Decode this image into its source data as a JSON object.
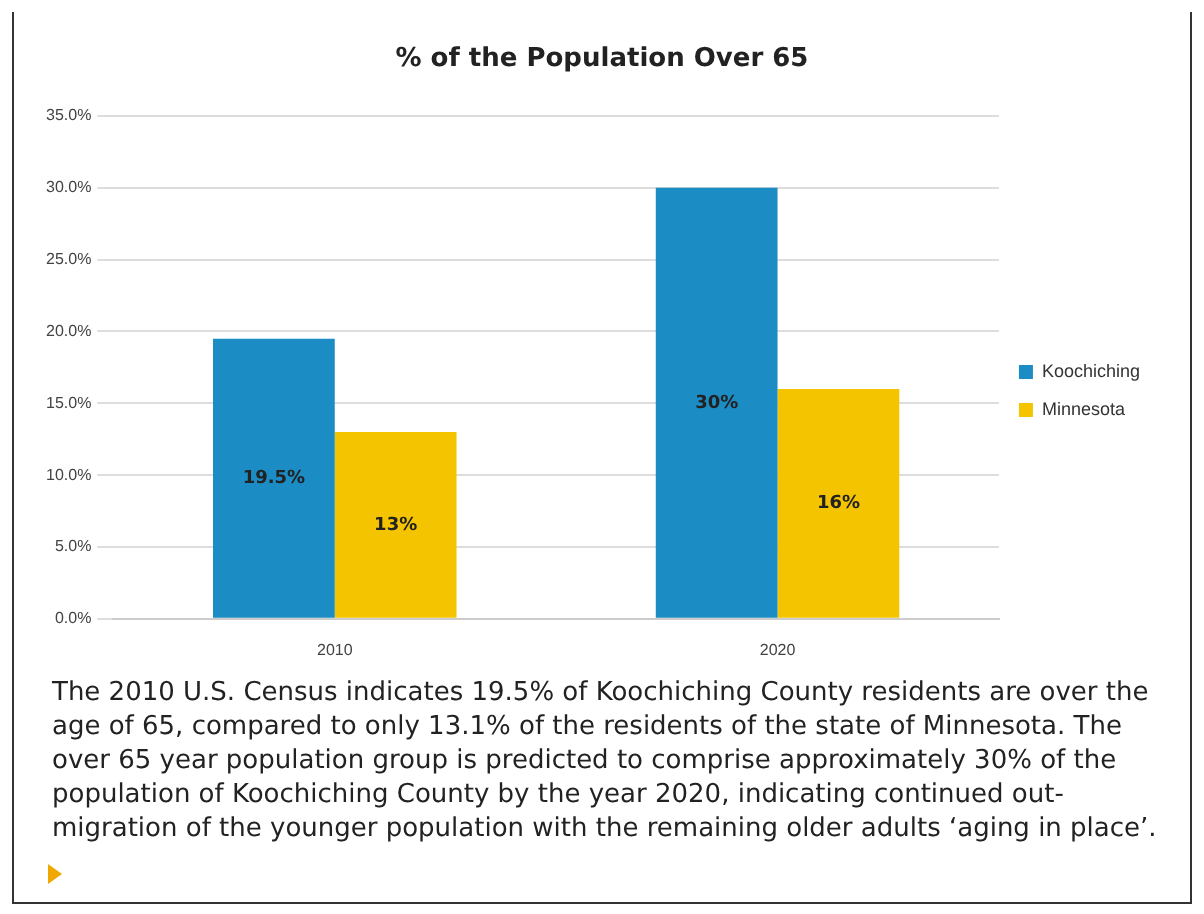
{
  "chart_data": {
    "type": "bar",
    "title": "% of the Population Over 65",
    "categories": [
      "2010",
      "2020"
    ],
    "series": [
      {
        "name": "Koochiching",
        "color": "#1b8cc4",
        "values": [
          19.5,
          30
        ],
        "value_labels": [
          "19.5%",
          "30%"
        ]
      },
      {
        "name": "Minnesota",
        "color": "#f5c400",
        "values": [
          13,
          16
        ],
        "value_labels": [
          "13%",
          "16%"
        ]
      }
    ],
    "ylim": [
      0,
      35
    ],
    "yticks": [
      {
        "value": 0,
        "label": "0.0%"
      },
      {
        "value": 5,
        "label": "5.0%"
      },
      {
        "value": 10,
        "label": "10.0%"
      },
      {
        "value": 15,
        "label": "15.0%"
      },
      {
        "value": 20,
        "label": "20.0%"
      },
      {
        "value": 25,
        "label": "25.0%"
      },
      {
        "value": 30,
        "label": "30.0%"
      },
      {
        "value": 35,
        "label": "35.0%"
      }
    ],
    "grid": "y",
    "legend": "right",
    "annotations": [
      "The 2010 U.S. Census indicates 19.5% of Koochiching County residents are over the age of 65, compared to only 13.1% of the residents of the state of Minnesota. The over 65 year population group is predicted to comprise approximately 30% of the population of Koochiching County by the year 2020, indicating continued out-migration of the younger population with the remaining older adults ‘aging in place’."
    ]
  }
}
